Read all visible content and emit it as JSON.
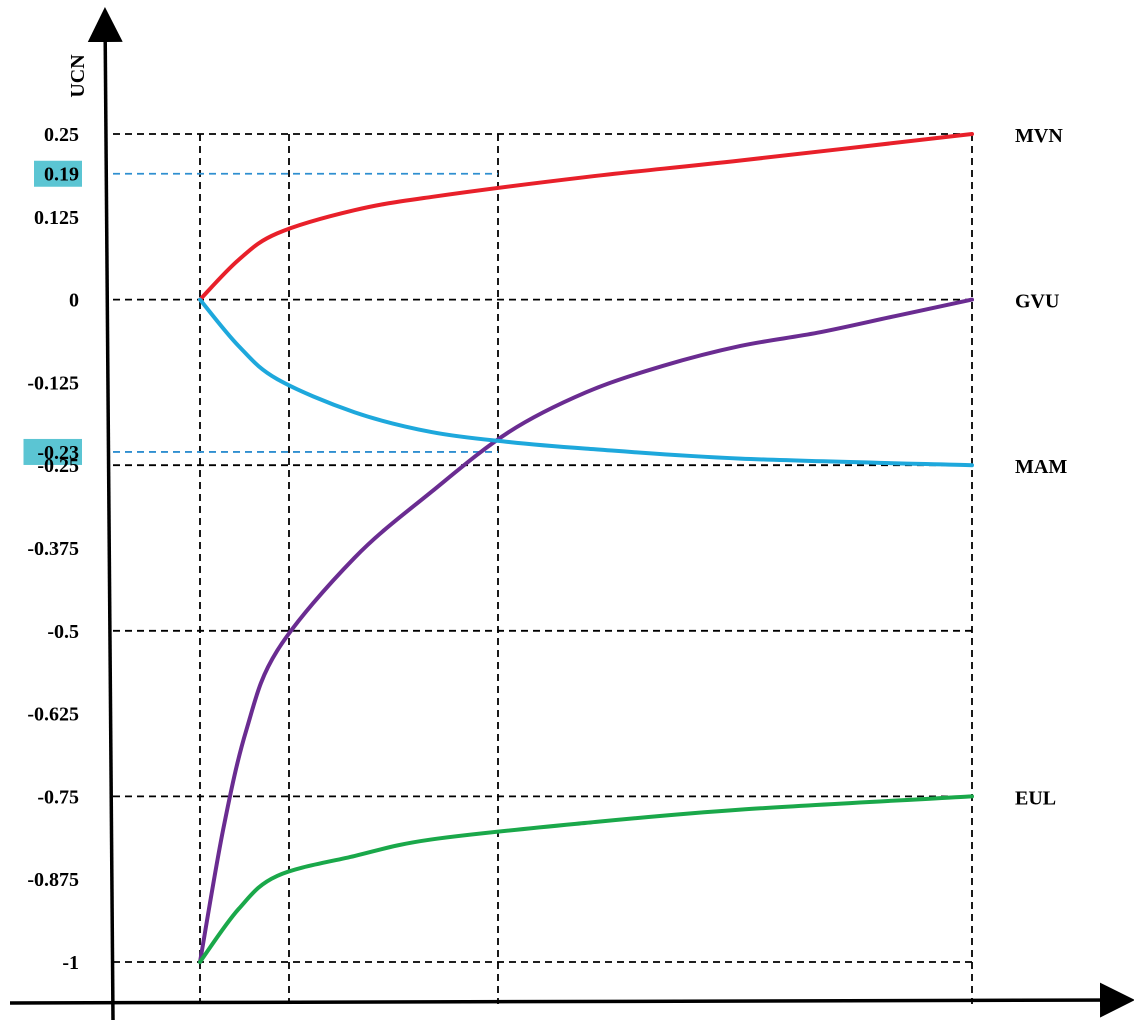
{
  "chart_data": {
    "type": "line",
    "ylabel": "UCN",
    "xlabel": "",
    "ylim": [
      -1,
      0.25
    ],
    "yticks": [
      "0.25",
      "0.19",
      "0.125",
      "0",
      "-0.125",
      "-0.23",
      "-0.25",
      "-0.375",
      "-0.5",
      "-0.625",
      "-0.75",
      "-0.875",
      "-1"
    ],
    "highlighted_ticks": [
      "0.19",
      "-0.23"
    ],
    "grid": true,
    "series": [
      {
        "name": "MVN",
        "color": "#e8202a",
        "points": [
          [
            0,
            0
          ],
          [
            0.05,
            0.06
          ],
          [
            0.1,
            0.1
          ],
          [
            0.2,
            0.135
          ],
          [
            0.3,
            0.155
          ],
          [
            0.5,
            0.185
          ],
          [
            0.7,
            0.21
          ],
          [
            1,
            0.25
          ]
        ]
      },
      {
        "name": "GVU",
        "color": "#6a2c91",
        "points": [
          [
            0,
            -1
          ],
          [
            0.03,
            -0.8
          ],
          [
            0.06,
            -0.65
          ],
          [
            0.1,
            -0.53
          ],
          [
            0.2,
            -0.39
          ],
          [
            0.3,
            -0.29
          ],
          [
            0.4,
            -0.2
          ],
          [
            0.5,
            -0.14
          ],
          [
            0.6,
            -0.1
          ],
          [
            0.7,
            -0.07
          ],
          [
            0.8,
            -0.05
          ],
          [
            0.9,
            -0.025
          ],
          [
            1,
            0
          ]
        ]
      },
      {
        "name": "MAM",
        "color": "#1ea8dc",
        "points": [
          [
            0,
            0
          ],
          [
            0.05,
            -0.07
          ],
          [
            0.1,
            -0.12
          ],
          [
            0.2,
            -0.17
          ],
          [
            0.3,
            -0.2
          ],
          [
            0.4,
            -0.215
          ],
          [
            0.5,
            -0.225
          ],
          [
            0.7,
            -0.24
          ],
          [
            1,
            -0.25
          ]
        ]
      },
      {
        "name": "EUL",
        "color": "#1aa84a",
        "points": [
          [
            0,
            -1
          ],
          [
            0.05,
            -0.92
          ],
          [
            0.1,
            -0.87
          ],
          [
            0.2,
            -0.84
          ],
          [
            0.3,
            -0.815
          ],
          [
            0.5,
            -0.79
          ],
          [
            0.7,
            -0.77
          ],
          [
            1,
            -0.75
          ]
        ]
      }
    ]
  },
  "colors": {
    "highlight": "#5bc5d3",
    "dash_blue": "#2f8fd0",
    "axis": "#000000",
    "grid": "#000000"
  }
}
